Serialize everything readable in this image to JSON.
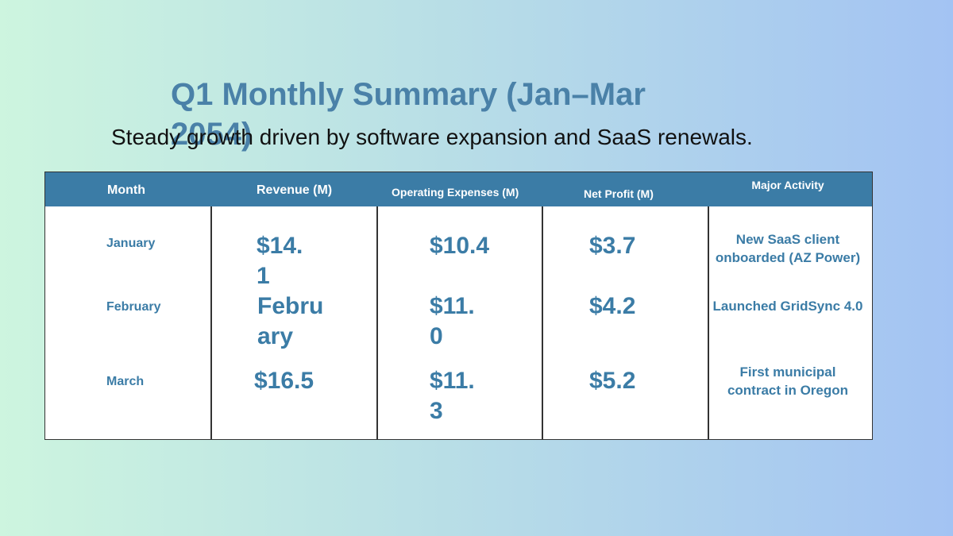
{
  "title": "Q1 Monthly Summary (Jan–Mar 2054)",
  "subtitle": "Steady growth driven by software expansion and SaaS renewals.",
  "table": {
    "headers": [
      "Month",
      "Revenue (M)",
      "Operating Expenses (M)",
      "Net Profit (M)",
      "Major Activity"
    ],
    "rows": [
      [
        "January",
        "$14.1",
        "$10.4",
        "$3.7",
        "New SaaS client onboarded (AZ Power)"
      ],
      [
        "February",
        "February",
        "$11.0",
        "$4.2",
        "Launched GridSync 4.0"
      ],
      [
        "March",
        "$16.5",
        "$11.3",
        "$5.2",
        "First municipal contract in Oregon"
      ]
    ]
  }
}
